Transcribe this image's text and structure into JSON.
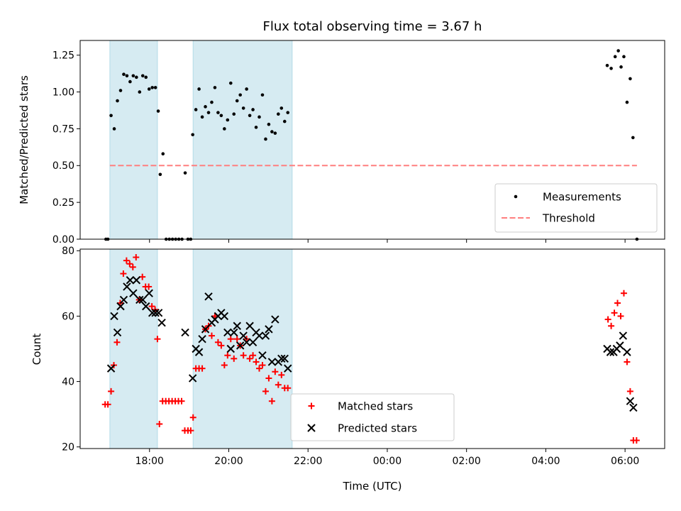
{
  "chart_data": {
    "type": "scatter",
    "title": "Flux total observing time = 3.67 h",
    "xlabel": "Time (UTC)",
    "x_unit": "hours",
    "x_range": [
      16.25,
      31.0
    ],
    "x_ticks": [
      {
        "x": 18,
        "label": "18:00"
      },
      {
        "x": 20,
        "label": "20:00"
      },
      {
        "x": 22,
        "label": "22:00"
      },
      {
        "x": 24,
        "label": "00:00"
      },
      {
        "x": 26,
        "label": "02:00"
      },
      {
        "x": 28,
        "label": "04:00"
      },
      {
        "x": 30,
        "label": "06:00"
      }
    ],
    "shaded_intervals": [
      [
        17.0,
        18.2
      ],
      [
        19.1,
        21.6
      ]
    ],
    "shade_color": "#add8e6",
    "panels": [
      {
        "id": "ratio",
        "ylabel": "Matched/Predicted stars",
        "ylim": [
          0,
          1.35
        ],
        "yticks": [
          "0.00",
          "0.25",
          "0.50",
          "0.75",
          "1.00",
          "1.25"
        ],
        "threshold": {
          "name": "Threshold",
          "value": 0.5,
          "x": [
            17.0,
            30.3
          ],
          "color": "#ff7f7f"
        },
        "series": [
          {
            "name": "Measurements",
            "marker": "dot",
            "color": "#000000",
            "points": [
              [
                16.9,
                0
              ],
              [
                16.95,
                0
              ],
              [
                17.03,
                0.84
              ],
              [
                17.11,
                0.75
              ],
              [
                17.19,
                0.94
              ],
              [
                17.27,
                1.01
              ],
              [
                17.35,
                1.12
              ],
              [
                17.43,
                1.11
              ],
              [
                17.51,
                1.07
              ],
              [
                17.59,
                1.11
              ],
              [
                17.67,
                1.1
              ],
              [
                17.75,
                1.0
              ],
              [
                17.83,
                1.11
              ],
              [
                17.91,
                1.1
              ],
              [
                17.99,
                1.02
              ],
              [
                18.07,
                1.03
              ],
              [
                18.15,
                1.03
              ],
              [
                18.22,
                0.87
              ],
              [
                18.27,
                0.44
              ],
              [
                18.34,
                0.58
              ],
              [
                18.42,
                0
              ],
              [
                18.5,
                0
              ],
              [
                18.58,
                0
              ],
              [
                18.66,
                0
              ],
              [
                18.74,
                0
              ],
              [
                18.82,
                0
              ],
              [
                18.9,
                0.45
              ],
              [
                18.97,
                0
              ],
              [
                19.04,
                0
              ],
              [
                19.09,
                0.71
              ],
              [
                19.17,
                0.88
              ],
              [
                19.25,
                1.02
              ],
              [
                19.33,
                0.83
              ],
              [
                19.41,
                0.9
              ],
              [
                19.49,
                0.86
              ],
              [
                19.57,
                0.93
              ],
              [
                19.65,
                1.03
              ],
              [
                19.73,
                0.86
              ],
              [
                19.81,
                0.84
              ],
              [
                19.89,
                0.75
              ],
              [
                19.97,
                0.81
              ],
              [
                20.05,
                1.06
              ],
              [
                20.13,
                0.85
              ],
              [
                20.21,
                0.94
              ],
              [
                20.29,
                0.98
              ],
              [
                20.37,
                0.89
              ],
              [
                20.45,
                1.02
              ],
              [
                20.53,
                0.84
              ],
              [
                20.61,
                0.88
              ],
              [
                20.69,
                0.76
              ],
              [
                20.77,
                0.83
              ],
              [
                20.85,
                0.98
              ],
              [
                20.93,
                0.68
              ],
              [
                21.01,
                0.78
              ],
              [
                21.09,
                0.73
              ],
              [
                21.17,
                0.72
              ],
              [
                21.25,
                0.85
              ],
              [
                21.33,
                0.89
              ],
              [
                21.41,
                0.8
              ],
              [
                21.49,
                0.86
              ],
              [
                29.55,
                1.18
              ],
              [
                29.65,
                1.16
              ],
              [
                29.75,
                1.24
              ],
              [
                29.83,
                1.28
              ],
              [
                29.9,
                1.17
              ],
              [
                29.97,
                1.24
              ],
              [
                30.05,
                0.93
              ],
              [
                30.13,
                1.09
              ],
              [
                30.2,
                0.69
              ],
              [
                30.3,
                0
              ]
            ]
          }
        ],
        "legend": {
          "position": "lower right",
          "entries": [
            "Measurements",
            "Threshold"
          ]
        }
      },
      {
        "id": "counts",
        "ylabel": "Count",
        "ylim": [
          19.5,
          80.5
        ],
        "yticks": [
          "20",
          "40",
          "60",
          "80"
        ],
        "series": [
          {
            "name": "Matched stars",
            "marker": "plus",
            "color": "#ff0000",
            "points": [
              [
                16.88,
                33
              ],
              [
                16.95,
                33
              ],
              [
                17.03,
                37
              ],
              [
                17.1,
                45
              ],
              [
                17.18,
                52
              ],
              [
                17.26,
                64
              ],
              [
                17.34,
                73
              ],
              [
                17.42,
                77
              ],
              [
                17.5,
                76
              ],
              [
                17.58,
                75
              ],
              [
                17.66,
                78
              ],
              [
                17.74,
                65
              ],
              [
                17.82,
                72
              ],
              [
                17.9,
                69
              ],
              [
                17.98,
                69
              ],
              [
                18.06,
                63
              ],
              [
                18.14,
                62
              ],
              [
                18.2,
                53
              ],
              [
                18.25,
                27
              ],
              [
                18.33,
                34
              ],
              [
                18.41,
                34
              ],
              [
                18.49,
                34
              ],
              [
                18.57,
                34
              ],
              [
                18.65,
                34
              ],
              [
                18.73,
                34
              ],
              [
                18.81,
                34
              ],
              [
                18.89,
                25
              ],
              [
                18.97,
                25
              ],
              [
                19.04,
                25
              ],
              [
                19.1,
                29
              ],
              [
                19.17,
                44
              ],
              [
                19.25,
                44
              ],
              [
                19.33,
                44
              ],
              [
                19.41,
                56
              ],
              [
                19.49,
                57
              ],
              [
                19.57,
                54
              ],
              [
                19.65,
                60
              ],
              [
                19.73,
                52
              ],
              [
                19.81,
                51
              ],
              [
                19.89,
                45
              ],
              [
                19.97,
                48
              ],
              [
                20.05,
                53
              ],
              [
                20.13,
                47
              ],
              [
                20.21,
                53
              ],
              [
                20.29,
                51
              ],
              [
                20.37,
                48
              ],
              [
                20.45,
                53
              ],
              [
                20.53,
                47
              ],
              [
                20.61,
                48
              ],
              [
                20.69,
                46
              ],
              [
                20.77,
                44
              ],
              [
                20.85,
                45
              ],
              [
                20.93,
                37
              ],
              [
                21.01,
                41
              ],
              [
                21.09,
                34
              ],
              [
                21.17,
                43
              ],
              [
                21.25,
                39
              ],
              [
                21.33,
                42
              ],
              [
                21.41,
                38
              ],
              [
                21.49,
                38
              ],
              [
                29.57,
                59
              ],
              [
                29.65,
                57
              ],
              [
                29.73,
                61
              ],
              [
                29.81,
                64
              ],
              [
                29.89,
                60
              ],
              [
                29.97,
                67
              ],
              [
                30.05,
                46
              ],
              [
                30.13,
                37
              ],
              [
                30.21,
                22
              ],
              [
                30.29,
                22
              ]
            ]
          },
          {
            "name": "Predicted stars",
            "marker": "x",
            "color": "#000000",
            "points": [
              [
                17.03,
                44
              ],
              [
                17.11,
                60
              ],
              [
                17.19,
                55
              ],
              [
                17.27,
                63
              ],
              [
                17.35,
                65
              ],
              [
                17.43,
                69
              ],
              [
                17.51,
                71
              ],
              [
                17.59,
                67
              ],
              [
                17.67,
                71
              ],
              [
                17.75,
                65
              ],
              [
                17.83,
                65
              ],
              [
                17.91,
                63
              ],
              [
                17.99,
                67
              ],
              [
                18.07,
                61
              ],
              [
                18.15,
                61
              ],
              [
                18.23,
                61
              ],
              [
                18.31,
                58
              ],
              [
                18.9,
                55
              ],
              [
                19.09,
                41
              ],
              [
                19.17,
                50
              ],
              [
                19.25,
                49
              ],
              [
                19.33,
                53
              ],
              [
                19.41,
                56
              ],
              [
                19.49,
                66
              ],
              [
                19.57,
                58
              ],
              [
                19.65,
                59
              ],
              [
                19.73,
                60
              ],
              [
                19.81,
                61
              ],
              [
                19.89,
                60
              ],
              [
                19.97,
                55
              ],
              [
                20.05,
                50
              ],
              [
                20.13,
                55
              ],
              [
                20.21,
                57
              ],
              [
                20.29,
                51
              ],
              [
                20.37,
                54
              ],
              [
                20.45,
                52
              ],
              [
                20.53,
                57
              ],
              [
                20.61,
                52
              ],
              [
                20.69,
                55
              ],
              [
                20.77,
                54
              ],
              [
                20.85,
                48
              ],
              [
                20.93,
                54
              ],
              [
                21.01,
                56
              ],
              [
                21.09,
                46
              ],
              [
                21.17,
                59
              ],
              [
                21.25,
                46
              ],
              [
                21.33,
                47
              ],
              [
                21.41,
                47
              ],
              [
                21.49,
                44
              ],
              [
                29.55,
                50
              ],
              [
                29.63,
                49
              ],
              [
                29.71,
                49
              ],
              [
                29.79,
                50
              ],
              [
                29.87,
                51
              ],
              [
                29.95,
                54
              ],
              [
                30.05,
                49
              ],
              [
                30.13,
                34
              ],
              [
                30.21,
                32
              ]
            ]
          }
        ],
        "legend": {
          "position": "lower center",
          "entries": [
            "Matched stars",
            "Predicted stars"
          ]
        }
      }
    ]
  }
}
